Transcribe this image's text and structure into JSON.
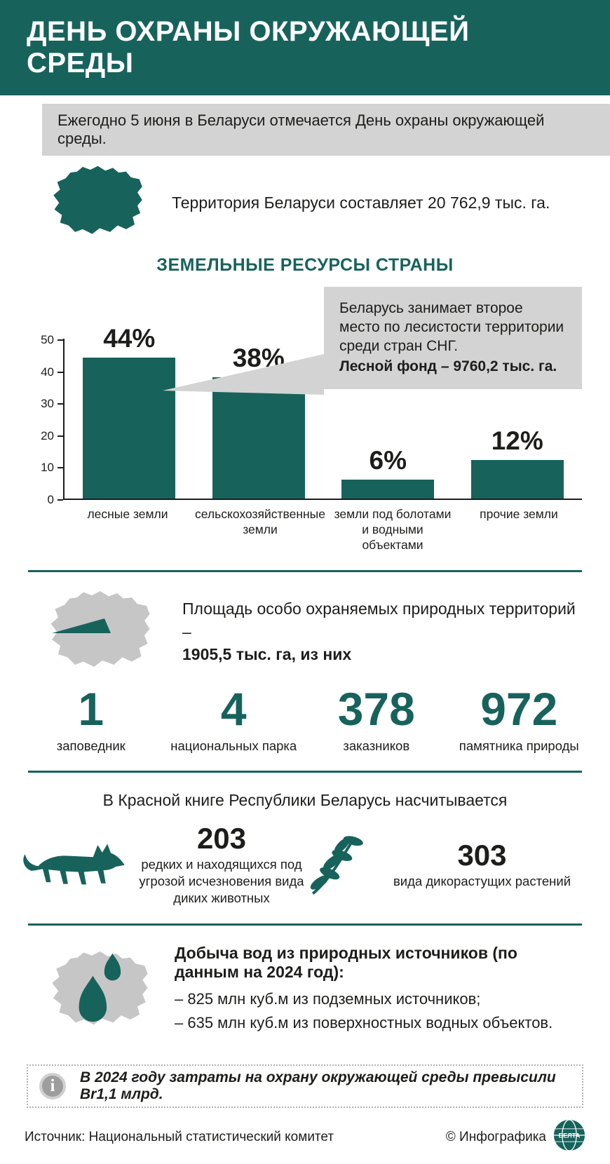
{
  "header": {
    "title": "ДЕНЬ ОХРАНЫ ОКРУЖАЮЩЕЙ СРЕДЫ"
  },
  "intro": {
    "text": "Ежегодно 5 июня в Беларуси отмечается День охраны окружающей среды."
  },
  "territory": {
    "text": "Территория Беларуси составляет 20 762,9 тыс. га."
  },
  "chart_section": {
    "title": "ЗЕМЕЛЬНЫЕ РЕСУРСЫ СТРАНЫ"
  },
  "chart_data": {
    "type": "bar",
    "categories": [
      "лесные земли",
      "сельскохозяйственные земли",
      "земли под болотами и водными объектами",
      "прочие земли"
    ],
    "values": [
      44,
      38,
      6,
      12
    ],
    "labels": [
      "44%",
      "38%",
      "6%",
      "12%"
    ],
    "ylim": [
      0,
      50
    ],
    "yticks": [
      0,
      10,
      20,
      30,
      40,
      50
    ],
    "bar_color": "#17635c",
    "grid": false,
    "callout": {
      "text": "Беларусь занимает второе место по лесистости территории среди стран СНГ.",
      "bold": "Лесной фонд – 9760,2 тыс. га."
    }
  },
  "protected": {
    "line1": "Площадь особо охраняемых природных территорий –",
    "line2": "1905,5 тыс. га, из них",
    "stats": [
      {
        "value": "1",
        "label": "заповедник"
      },
      {
        "value": "4",
        "label": "национальных парка"
      },
      {
        "value": "378",
        "label": "заказников"
      },
      {
        "value": "972",
        "label": "памятника природы"
      }
    ]
  },
  "red_book": {
    "title": "В Красной книге Республики Беларусь насчитывается",
    "animals": {
      "value": "203",
      "label": "редких и находящихся под угрозой исчезновения вида диких животных"
    },
    "plants": {
      "value": "303",
      "label": "вида дикорастущих растений"
    }
  },
  "water": {
    "title": "Добыча вод из природных источников (по данным на 2024 год):",
    "items": [
      "– 825 млн куб.м из подземных источников;",
      "– 635 млн куб.м из поверхностных водных объектов."
    ]
  },
  "note": {
    "text": "В 2024 году затраты на охрану окружающей среды превысили Br1,1 млрд."
  },
  "footer": {
    "source": "Источник: Национальный статистический комитет",
    "credit": "© Инфографика",
    "logo": "БЕЛТА"
  },
  "colors": {
    "teal": "#17635c",
    "gray": "#d3d3d3",
    "map_gray": "#c6c6c6",
    "ink": "#1d1d1b"
  }
}
